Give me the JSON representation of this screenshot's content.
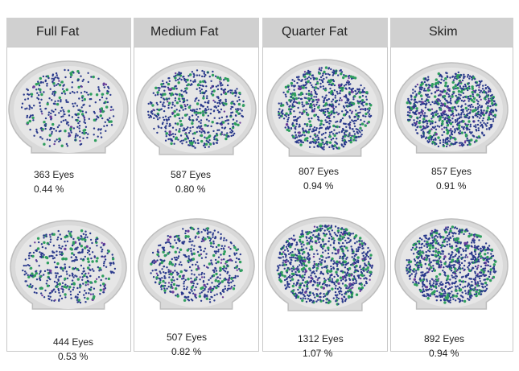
{
  "columns": [
    {
      "header": "Full Fat",
      "top": {
        "eyes": "363 Eyes",
        "percent": "0.44 %"
      },
      "bottom": {
        "eyes": "444 Eyes",
        "percent": "0.53 %"
      }
    },
    {
      "header": "Medium Fat",
      "top": {
        "eyes": "587 Eyes",
        "percent": "0.80 %"
      },
      "bottom": {
        "eyes": "507 Eyes",
        "percent": "0.82 %"
      }
    },
    {
      "header": "Quarter Fat",
      "top": {
        "eyes": "807 Eyes",
        "percent": "0.94 %"
      },
      "bottom": {
        "eyes": "1312 Eyes",
        "percent": "1.07 %"
      }
    },
    {
      "header": "Skim",
      "top": {
        "eyes": "857 Eyes",
        "percent": "0.91 %"
      },
      "bottom": {
        "eyes": "892 Eyes",
        "percent": "0.94 %"
      }
    }
  ],
  "colors": {
    "header_bg": "#d0d0d0",
    "frame_border": "#c8c8c8",
    "slice_fill": "#d9d9d9",
    "slice_edge": "#bdbdbd",
    "eye_blue": "#2a3a8c",
    "eye_green": "#2e9e5e",
    "eye_purple": "#6a3d9a"
  },
  "icons": [
    "cheese-slice-image"
  ]
}
